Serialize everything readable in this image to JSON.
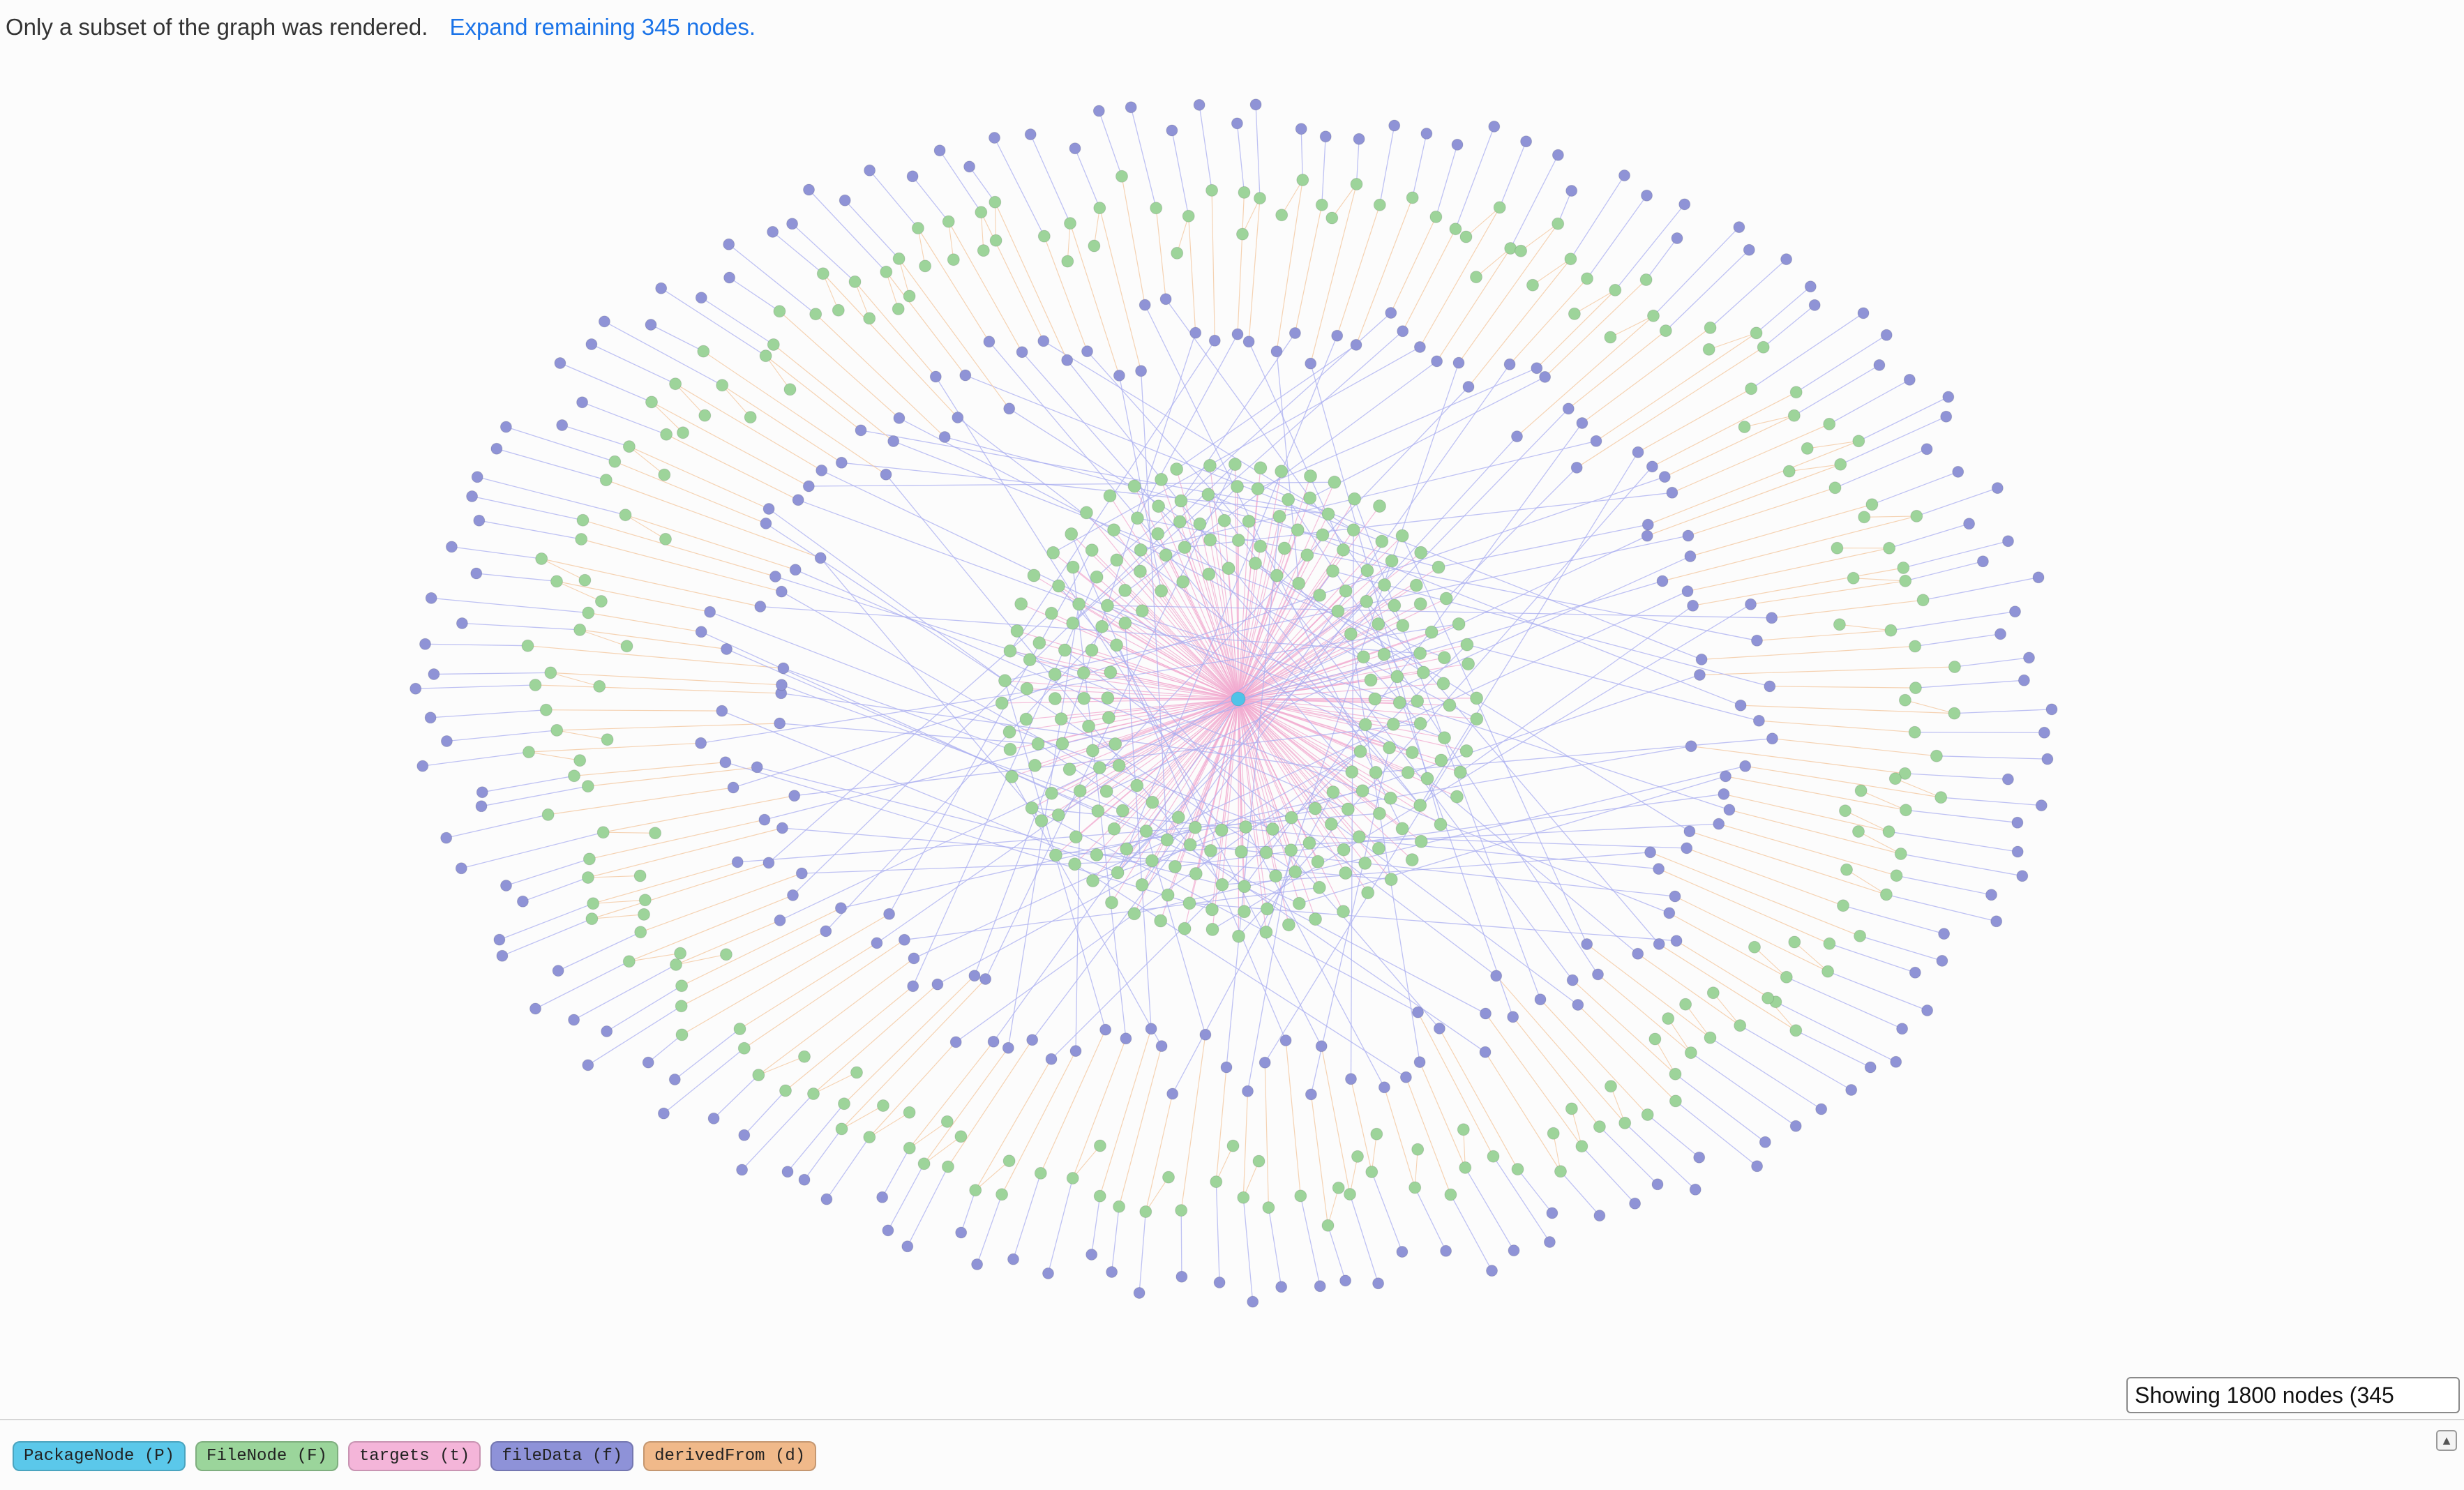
{
  "notice": {
    "message": "Only a subset of the graph was rendered.",
    "expand_link": "Expand remaining 345 nodes."
  },
  "status": {
    "value": "Showing 1800 nodes (345"
  },
  "legend": [
    {
      "label": "PackageNode (P)",
      "color": "#5bc8ea"
    },
    {
      "label": "FileNode (F)",
      "color": "#9bd59b"
    },
    {
      "label": "targets (t)",
      "color": "#f4b5d9"
    },
    {
      "label": "fileData (f)",
      "color": "#8e92d8"
    },
    {
      "label": "derivedFrom (d)",
      "color": "#f0b98a"
    }
  ],
  "colors": {
    "package_node": "#4fc3e8",
    "file_node": "#9dd49a",
    "file_data_node": "#8f93d6",
    "targets_edge": "#f2a9cf",
    "file_data_edge": "#a9aef0",
    "derived_from_edge": "#f3c49a"
  },
  "collapse_icon": "triangle-up-icon"
}
